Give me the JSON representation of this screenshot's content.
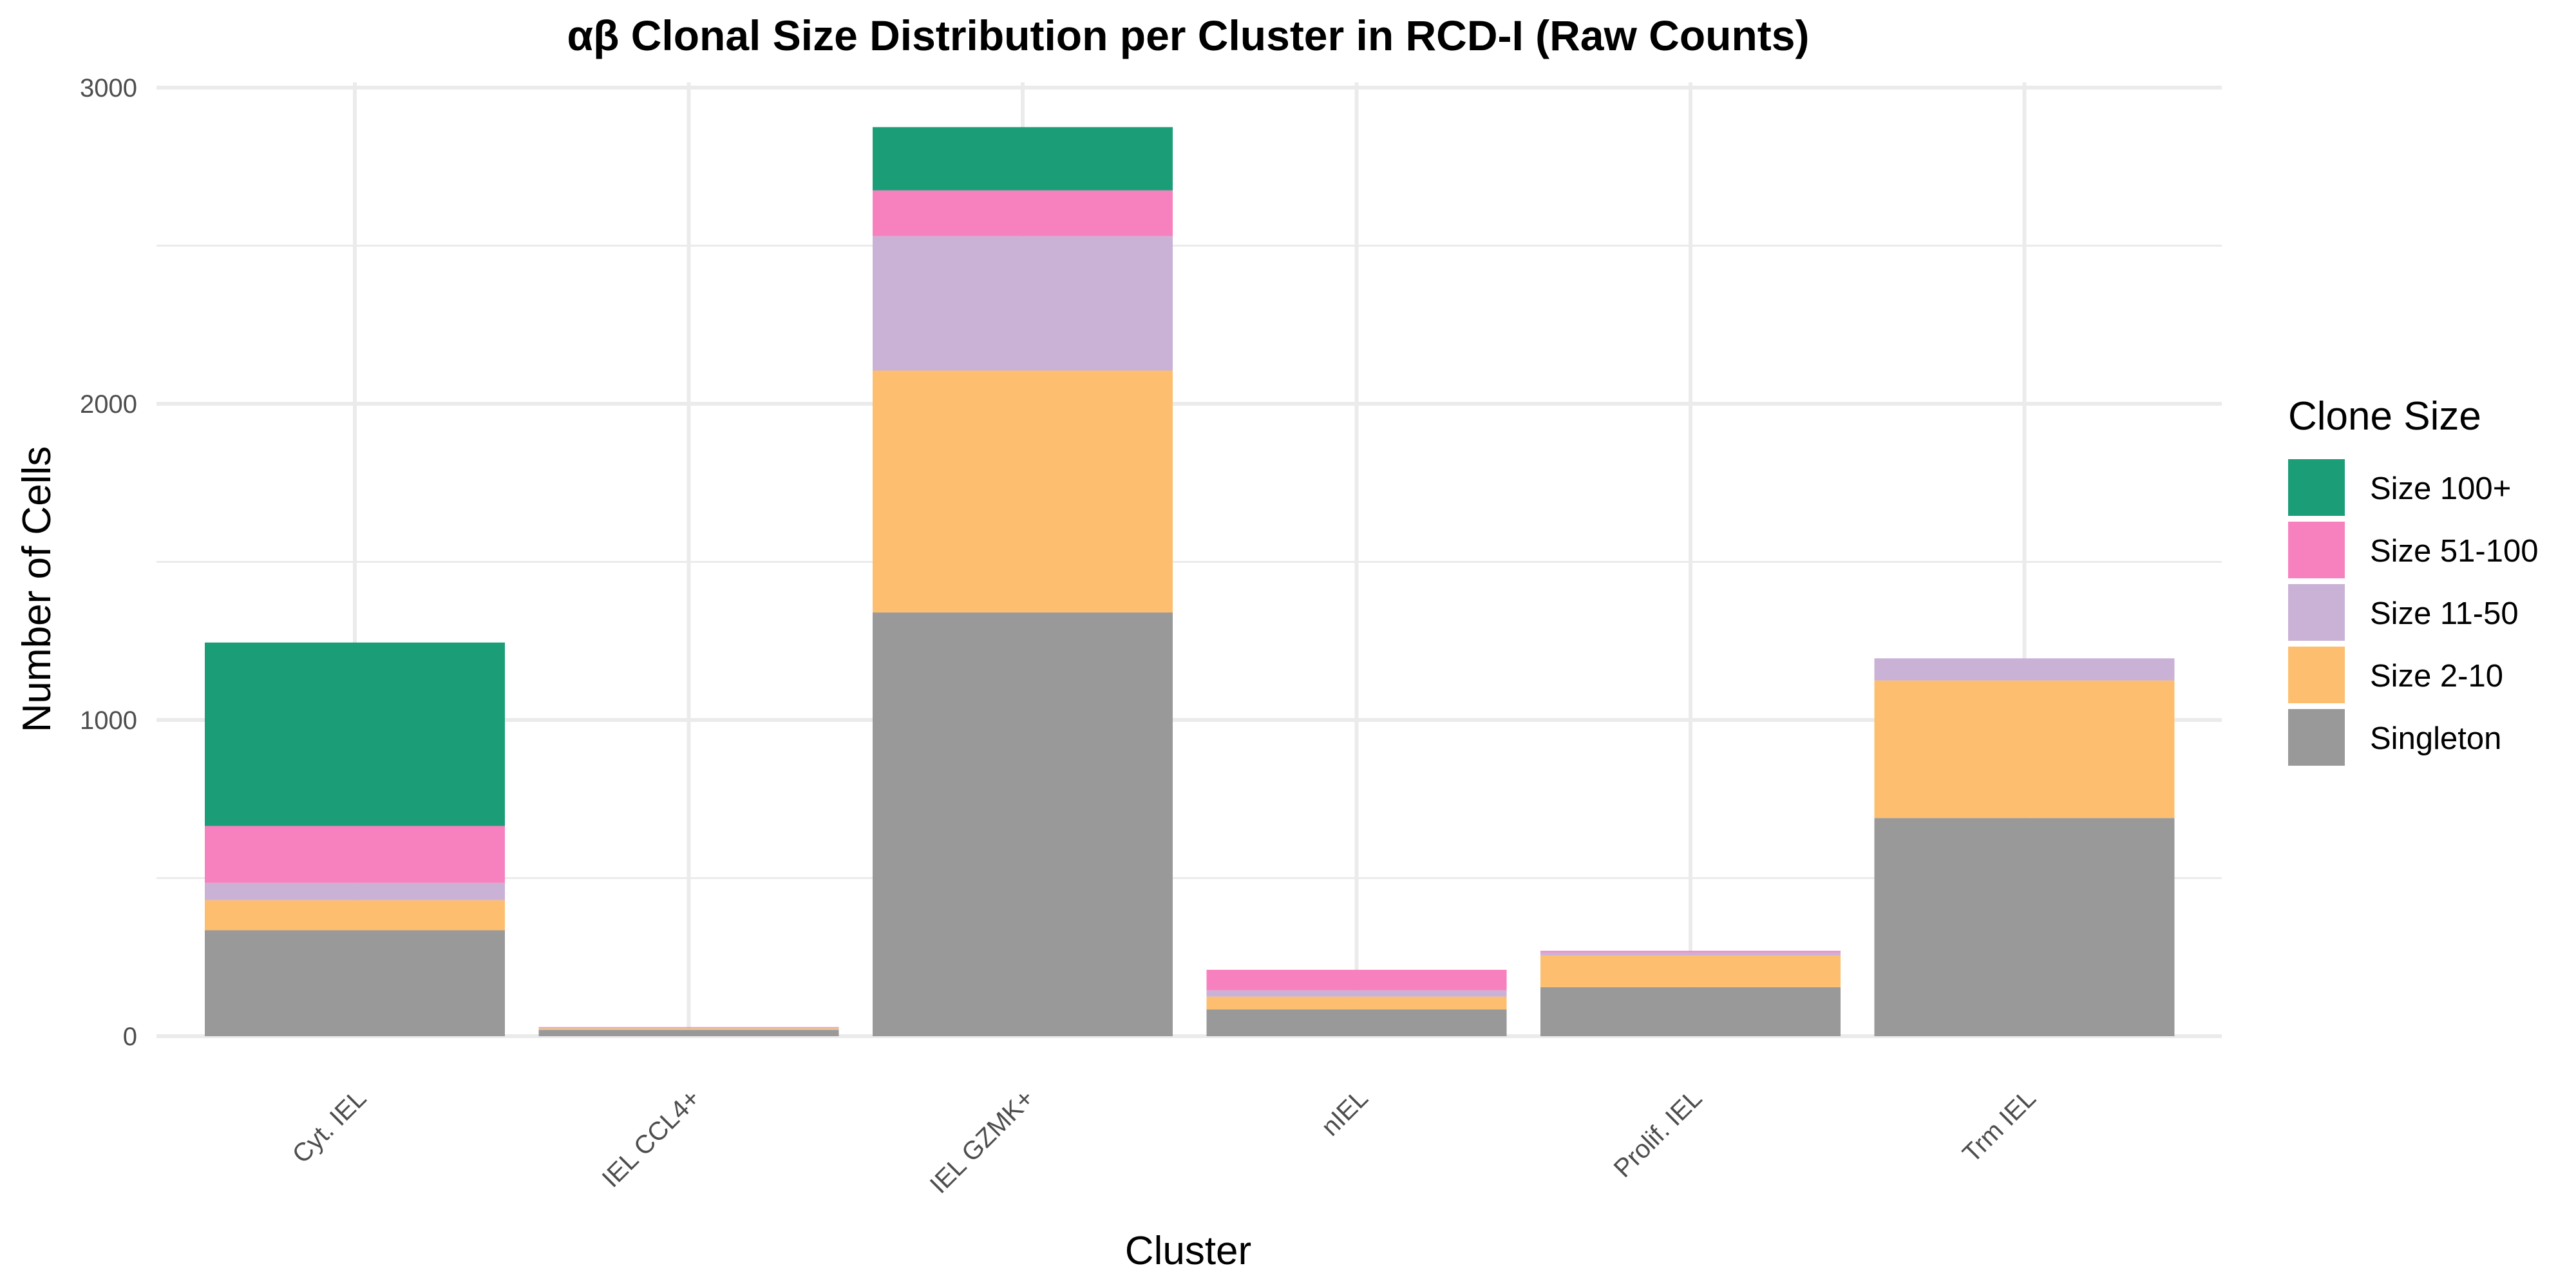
{
  "chart_data": {
    "type": "bar",
    "stacked": true,
    "title": "αβ Clonal Size Distribution per Cluster in RCD-I (Raw Counts)",
    "xlabel": "Cluster",
    "ylabel": "Number of Cells",
    "ylim": [
      0,
      3000
    ],
    "yticks": [
      "0",
      "1000",
      "2000",
      "3000"
    ],
    "ytick_values": [
      0,
      1000,
      2000,
      3000
    ],
    "grid": true,
    "categories": [
      "Cyt. IEL",
      "IEL CCL4+",
      "IEL GZMK+",
      "nIEL",
      "Prolif. IEL",
      "Trm IEL"
    ],
    "legend": {
      "title": "Clone Size",
      "position": "right"
    },
    "series": [
      {
        "name": "Singleton",
        "color": "#999999",
        "values": [
          335,
          20,
          1340,
          85,
          155,
          690
        ]
      },
      {
        "name": "Size 2-10",
        "color": "#FDBF6F",
        "values": [
          95,
          5,
          765,
          40,
          100,
          435
        ]
      },
      {
        "name": "Size 11-50",
        "color": "#CAB2D6",
        "values": [
          55,
          2,
          425,
          20,
          10,
          70
        ]
      },
      {
        "name": "Size 51-100",
        "color": "#F781BF",
        "values": [
          180,
          2,
          145,
          65,
          5,
          0
        ]
      },
      {
        "name": "Size 100+",
        "color": "#1B9E77",
        "values": [
          580,
          0,
          200,
          0,
          0,
          0
        ]
      }
    ]
  }
}
